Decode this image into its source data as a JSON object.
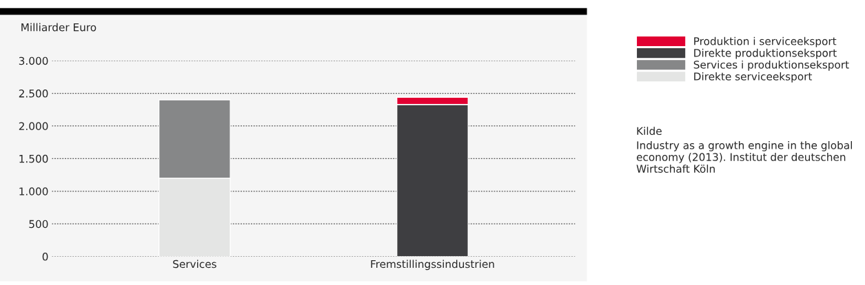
{
  "chart_data": {
    "type": "bar",
    "stacked": true,
    "ylabel": "Milliarder Euro",
    "categories": [
      "Services",
      "Fremstillingssindustrien"
    ],
    "series": [
      {
        "name": "Direkte serviceeksport",
        "color": "#e4e5e4",
        "values": [
          1200,
          null
        ]
      },
      {
        "name": "Services i produktionseksport",
        "color": "#868788",
        "values": [
          1200,
          null
        ]
      },
      {
        "name": "Direkte produktionseksport",
        "color": "#3e3e41",
        "values": [
          null,
          2330
        ]
      },
      {
        "name": "Produktion i serviceeksport",
        "color": "#e10032",
        "values": [
          null,
          110
        ]
      }
    ],
    "ylim": [
      0,
      3000
    ],
    "yticks": [
      0,
      500,
      {
        "value": 1000,
        "label": "1.000"
      },
      {
        "value": 1500,
        "label": "1.500"
      },
      {
        "value": 2000,
        "label": "2.000"
      },
      {
        "value": 2500,
        "label": "2.500"
      },
      {
        "value": 3000,
        "label": "3.000"
      }
    ],
    "grid": "y",
    "legend": "top right",
    "annotations": [
      "Kilde",
      "Industry as a growth engine in the global economy (2013). Institut der deutschen Wirtschaft Köln"
    ]
  }
}
